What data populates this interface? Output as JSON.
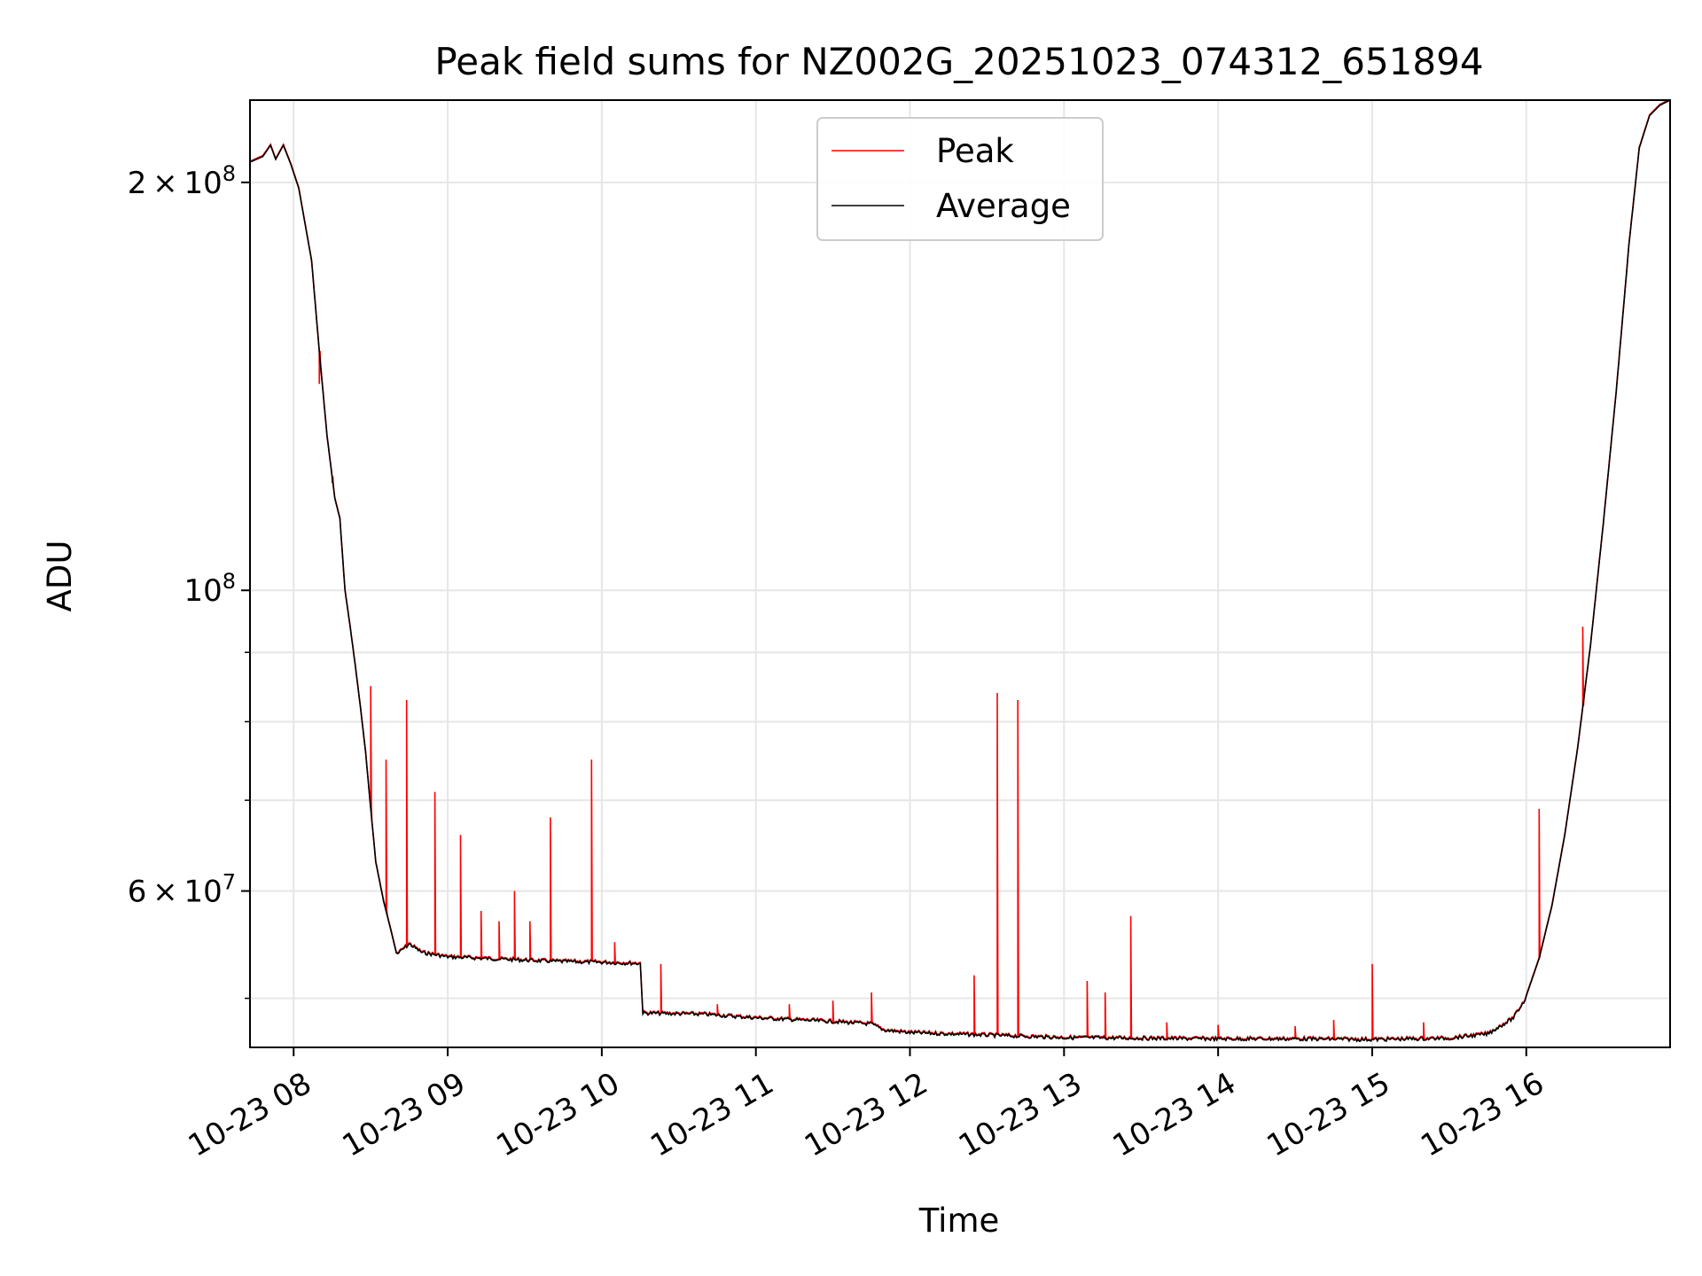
{
  "chart_data": {
    "type": "line",
    "title": "Peak field sums for NZ002G_20251023_074312_651894",
    "xlabel": "Time",
    "ylabel": "ADU",
    "yscale": "log",
    "xlim": [
      "2025-10-23 07:43",
      "2025-10-23 16:56"
    ],
    "ylim": [
      46000000,
      230000000
    ],
    "grid": true,
    "legend_position": "top-center",
    "x_ticks": [
      {
        "t": "2025-10-23 08:00",
        "label": "10-23 08"
      },
      {
        "t": "2025-10-23 09:00",
        "label": "10-23 09"
      },
      {
        "t": "2025-10-23 10:00",
        "label": "10-23 10"
      },
      {
        "t": "2025-10-23 11:00",
        "label": "10-23 11"
      },
      {
        "t": "2025-10-23 12:00",
        "label": "10-23 12"
      },
      {
        "t": "2025-10-23 13:00",
        "label": "10-23 13"
      },
      {
        "t": "2025-10-23 14:00",
        "label": "10-23 14"
      },
      {
        "t": "2025-10-23 15:00",
        "label": "10-23 15"
      },
      {
        "t": "2025-10-23 16:00",
        "label": "10-23 16"
      }
    ],
    "y_major_ticks": [
      {
        "value": 60000000,
        "mantissa": "6",
        "exponent": "7"
      },
      {
        "value": 100000000,
        "mantissa": "",
        "exponent": "8"
      },
      {
        "value": 200000000,
        "mantissa": "2",
        "exponent": "8"
      }
    ],
    "y_minor_ticks": [
      50000000,
      70000000,
      80000000,
      90000000
    ],
    "series": [
      {
        "name": "Average",
        "color": "#000000",
        "points": [
          [
            "2025-10-23 07:43",
            207000000
          ],
          [
            "2025-10-23 07:48",
            209000000
          ],
          [
            "2025-10-23 07:51",
            213000000
          ],
          [
            "2025-10-23 07:53",
            208000000
          ],
          [
            "2025-10-23 07:56",
            213000000
          ],
          [
            "2025-10-23 07:59",
            206000000
          ],
          [
            "2025-10-23 08:02",
            198000000
          ],
          [
            "2025-10-23 08:07",
            175000000
          ],
          [
            "2025-10-23 08:10",
            150000000
          ],
          [
            "2025-10-23 08:13",
            130000000
          ],
          [
            "2025-10-23 08:16",
            117000000
          ],
          [
            "2025-10-23 08:18",
            113000000
          ],
          [
            "2025-10-23 08:20",
            100000000
          ],
          [
            "2025-10-23 08:22",
            94000000
          ],
          [
            "2025-10-23 08:24",
            88000000
          ],
          [
            "2025-10-23 08:26",
            82000000
          ],
          [
            "2025-10-23 08:28",
            76000000
          ],
          [
            "2025-10-23 08:30",
            69000000
          ],
          [
            "2025-10-23 08:32",
            63000000
          ],
          [
            "2025-10-23 08:35",
            59000000
          ],
          [
            "2025-10-23 08:38",
            56000000
          ],
          [
            "2025-10-23 08:40",
            54000000
          ],
          [
            "2025-10-23 08:45",
            55000000
          ],
          [
            "2025-10-23 08:50",
            54200000
          ],
          [
            "2025-10-23 09:00",
            53800000
          ],
          [
            "2025-10-23 09:20",
            53600000
          ],
          [
            "2025-10-23 09:40",
            53400000
          ],
          [
            "2025-10-23 10:00",
            53300000
          ],
          [
            "2025-10-23 10:15",
            53200000
          ],
          [
            "2025-10-23 10:16",
            48900000
          ],
          [
            "2025-10-23 10:40",
            48800000
          ],
          [
            "2025-10-23 11:00",
            48500000
          ],
          [
            "2025-10-23 11:30",
            48200000
          ],
          [
            "2025-10-23 11:45",
            48000000
          ],
          [
            "2025-10-23 11:50",
            47500000
          ],
          [
            "2025-10-23 12:00",
            47300000
          ],
          [
            "2025-10-23 12:30",
            47100000
          ],
          [
            "2025-10-23 13:00",
            46900000
          ],
          [
            "2025-10-23 13:30",
            46850000
          ],
          [
            "2025-10-23 14:00",
            46800000
          ],
          [
            "2025-10-23 14:30",
            46800000
          ],
          [
            "2025-10-23 15:00",
            46750000
          ],
          [
            "2025-10-23 15:30",
            46850000
          ],
          [
            "2025-10-23 15:45",
            47200000
          ],
          [
            "2025-10-23 15:55",
            48500000
          ],
          [
            "2025-10-23 16:00",
            50200000
          ],
          [
            "2025-10-23 16:05",
            53500000
          ],
          [
            "2025-10-23 16:10",
            58500000
          ],
          [
            "2025-10-23 16:15",
            66000000
          ],
          [
            "2025-10-23 16:20",
            76500000
          ],
          [
            "2025-10-23 16:25",
            91000000
          ],
          [
            "2025-10-23 16:30",
            112000000
          ],
          [
            "2025-10-23 16:35",
            140000000
          ],
          [
            "2025-10-23 16:40",
            180000000
          ],
          [
            "2025-10-23 16:44",
            212000000
          ],
          [
            "2025-10-23 16:48",
            224000000
          ],
          [
            "2025-10-23 16:52",
            228000000
          ],
          [
            "2025-10-23 16:56",
            230000000
          ]
        ]
      },
      {
        "name": "Peak",
        "color": "#ff0000",
        "baseline": "Average",
        "spikes": [
          [
            "2025-10-23 08:10",
            142000000
          ],
          [
            "2025-10-23 08:15",
            120000000
          ],
          [
            "2025-10-23 08:30",
            85000000
          ],
          [
            "2025-10-23 08:36",
            75000000
          ],
          [
            "2025-10-23 08:44",
            83000000
          ],
          [
            "2025-10-23 08:55",
            71000000
          ],
          [
            "2025-10-23 09:05",
            66000000
          ],
          [
            "2025-10-23 09:13",
            58000000
          ],
          [
            "2025-10-23 09:20",
            57000000
          ],
          [
            "2025-10-23 09:26",
            60000000
          ],
          [
            "2025-10-23 09:32",
            57000000
          ],
          [
            "2025-10-23 09:40",
            68000000
          ],
          [
            "2025-10-23 09:56",
            75000000
          ],
          [
            "2025-10-23 10:05",
            55000000
          ],
          [
            "2025-10-23 10:23",
            53000000
          ],
          [
            "2025-10-23 10:45",
            49500000
          ],
          [
            "2025-10-23 11:13",
            49500000
          ],
          [
            "2025-10-23 11:30",
            49800000
          ],
          [
            "2025-10-23 11:45",
            50500000
          ],
          [
            "2025-10-23 12:25",
            52000000
          ],
          [
            "2025-10-23 12:34",
            84000000
          ],
          [
            "2025-10-23 12:42",
            83000000
          ],
          [
            "2025-10-23 13:09",
            51500000
          ],
          [
            "2025-10-23 13:16",
            50500000
          ],
          [
            "2025-10-23 13:26",
            57500000
          ],
          [
            "2025-10-23 13:40",
            48000000
          ],
          [
            "2025-10-23 14:00",
            47800000
          ],
          [
            "2025-10-23 14:30",
            47700000
          ],
          [
            "2025-10-23 14:45",
            48200000
          ],
          [
            "2025-10-23 15:00",
            53000000
          ],
          [
            "2025-10-23 15:20",
            48000000
          ],
          [
            "2025-10-23 16:05",
            69000000
          ],
          [
            "2025-10-23 16:22",
            94000000
          ]
        ]
      }
    ]
  }
}
